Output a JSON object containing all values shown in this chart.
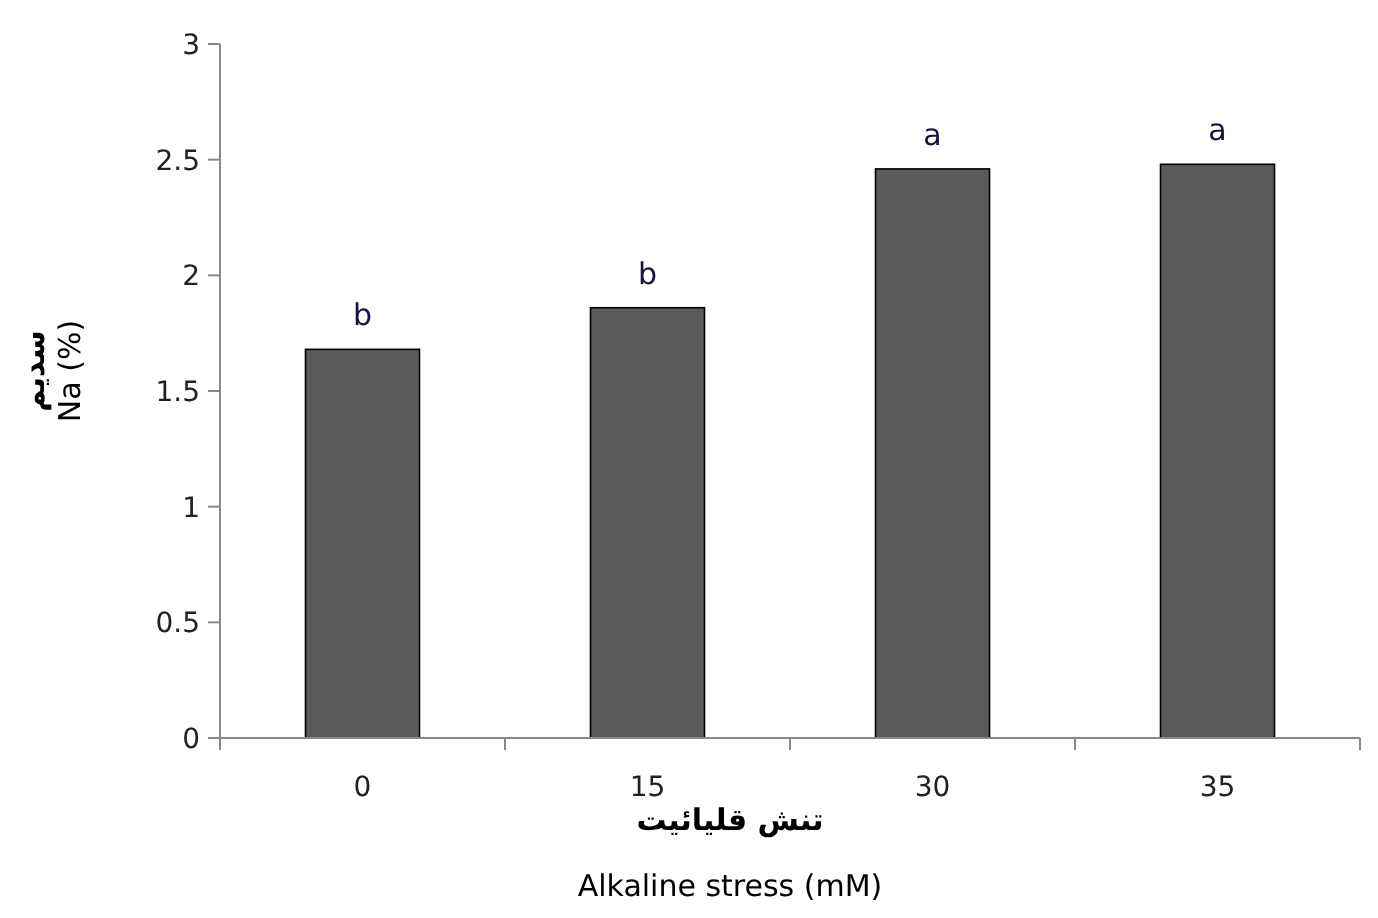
{
  "chart_data": {
    "type": "bar",
    "categories": [
      "0",
      "15",
      "30",
      "35"
    ],
    "values": [
      1.68,
      1.86,
      2.46,
      2.48
    ],
    "color": "#5a5a5a",
    "ylim": [
      0,
      3
    ],
    "yticks": [
      0,
      0.5,
      1,
      1.5,
      2,
      2.5,
      3
    ],
    "xlabel": "تنش قلیائیت\nAlkaline stress (mM)",
    "ylabel": "سدیم\nNa (%)",
    "annotations": [
      {
        "text": "b",
        "x": "0",
        "y": 1.68
      },
      {
        "text": "b",
        "x": "15",
        "y": 1.86
      },
      {
        "text": "a",
        "x": "30",
        "y": 2.46
      },
      {
        "text": "a",
        "x": "35",
        "y": 2.48
      }
    ],
    "grid": false
  }
}
